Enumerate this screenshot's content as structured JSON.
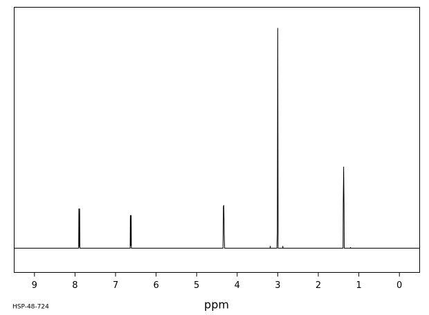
{
  "chart_data": {
    "type": "line",
    "id_label": "HSP-48-724",
    "x_label": "ppm",
    "x": [
      9.5,
      7.91,
      7.905,
      7.9,
      7.885,
      7.88,
      6.64,
      6.635,
      6.625,
      6.615,
      6.61,
      4.35,
      4.345,
      4.34,
      4.33,
      4.32,
      4.31,
      3.19,
      3.185,
      3.18,
      3.02,
      3.01,
      3.0,
      2.99,
      2.88,
      2.875,
      2.87,
      1.39,
      1.385,
      1.375,
      1.365,
      1.36,
      1.21,
      1.205,
      1.2,
      -0.5
    ],
    "values": [
      0,
      0,
      18,
      0.5,
      18,
      0,
      0,
      15,
      1,
      15,
      0,
      0,
      6,
      19,
      19.5,
      6.5,
      0,
      0,
      1,
      0,
      0,
      7,
      100,
      0,
      0,
      1,
      0,
      0,
      20,
      37,
      19,
      0,
      0,
      0.5,
      0,
      0
    ],
    "color": "#000000",
    "xlim": [
      9.5,
      -0.5
    ],
    "ylim": [
      -11,
      109.4
    ],
    "xticks": [
      9,
      8,
      7,
      6,
      5,
      4,
      3,
      2,
      1,
      0
    ]
  }
}
